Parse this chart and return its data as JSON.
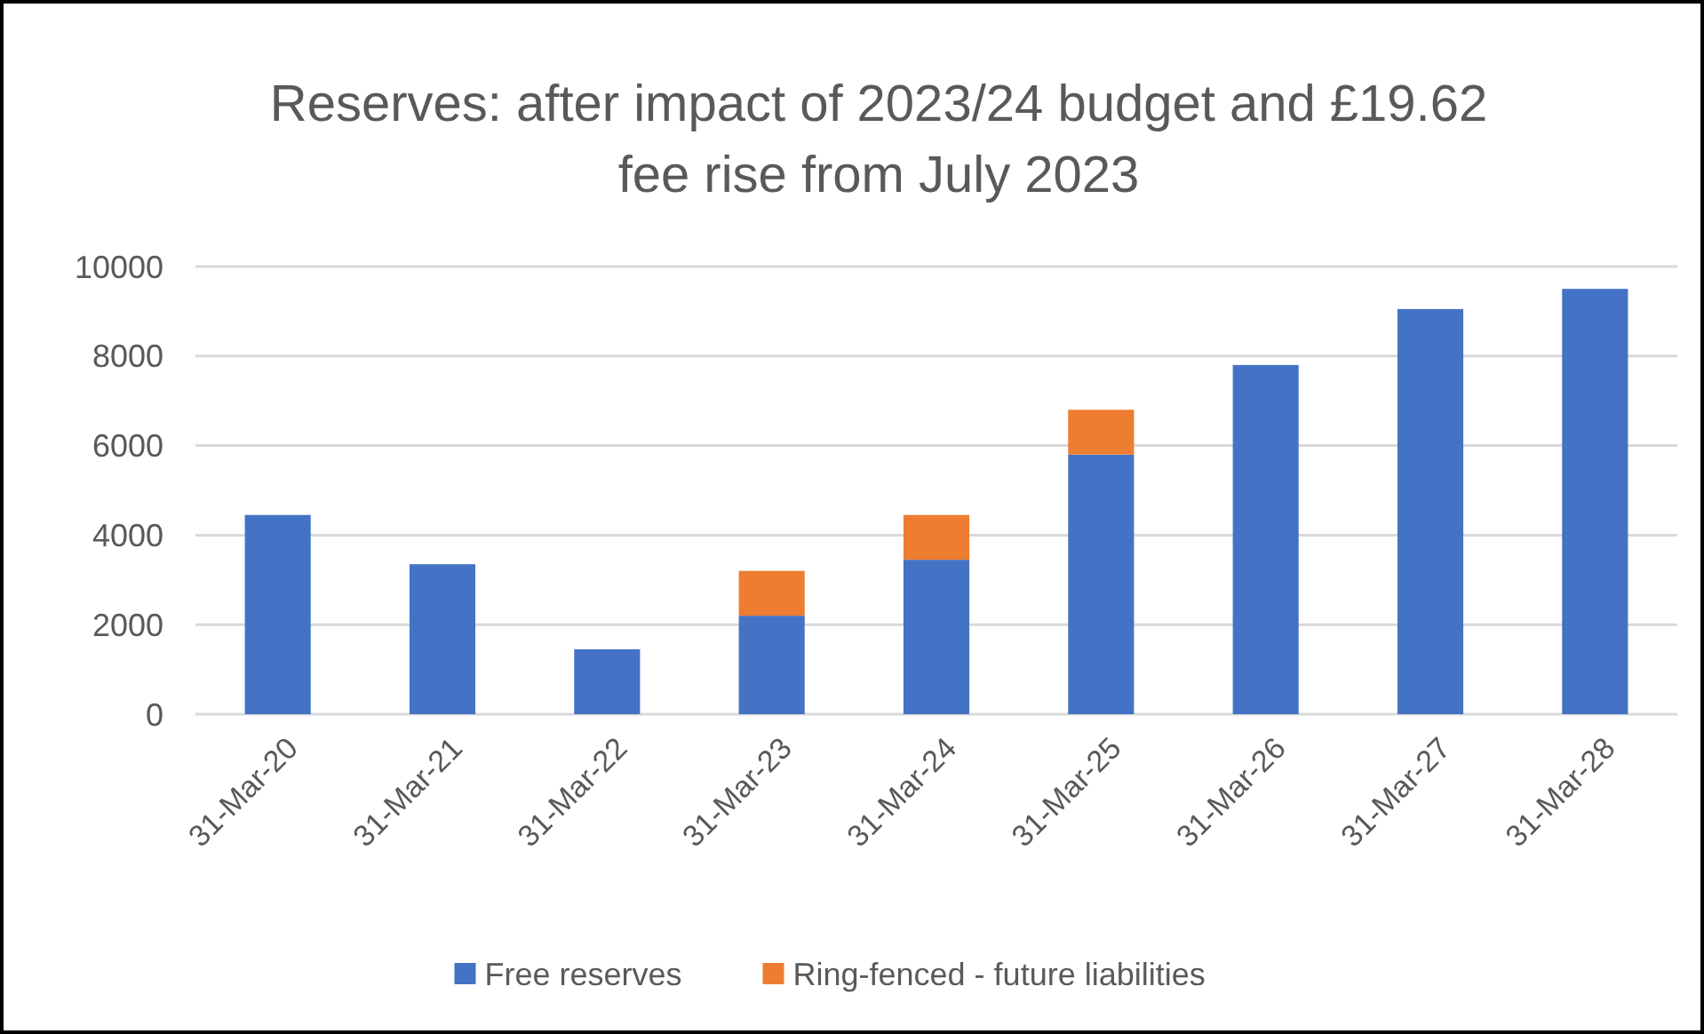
{
  "chart_data": {
    "type": "bar",
    "title": "Reserves: after impact of 2023/24 budget and £19.62 fee rise from July 2023",
    "categories": [
      "31-Mar-20",
      "31-Mar-21",
      "31-Mar-22",
      "31-Mar-23",
      "31-Mar-24",
      "31-Mar-25",
      "31-Mar-26",
      "31-Mar-27",
      "31-Mar-28"
    ],
    "series": [
      {
        "name": "Free reserves",
        "color": "#4472c4",
        "values": [
          4450,
          3350,
          1450,
          2200,
          3450,
          5800,
          7800,
          9050,
          9500
        ]
      },
      {
        "name": "Ring-fenced - future liabilities",
        "color": "#ed7d31",
        "values": [
          null,
          null,
          null,
          1000,
          1000,
          1000,
          null,
          null,
          null
        ]
      }
    ],
    "stacked": true,
    "ylim": [
      0,
      10000
    ],
    "yticks": [
      0,
      2000,
      4000,
      6000,
      8000,
      10000
    ],
    "grid": "y",
    "legend": "bottom"
  }
}
